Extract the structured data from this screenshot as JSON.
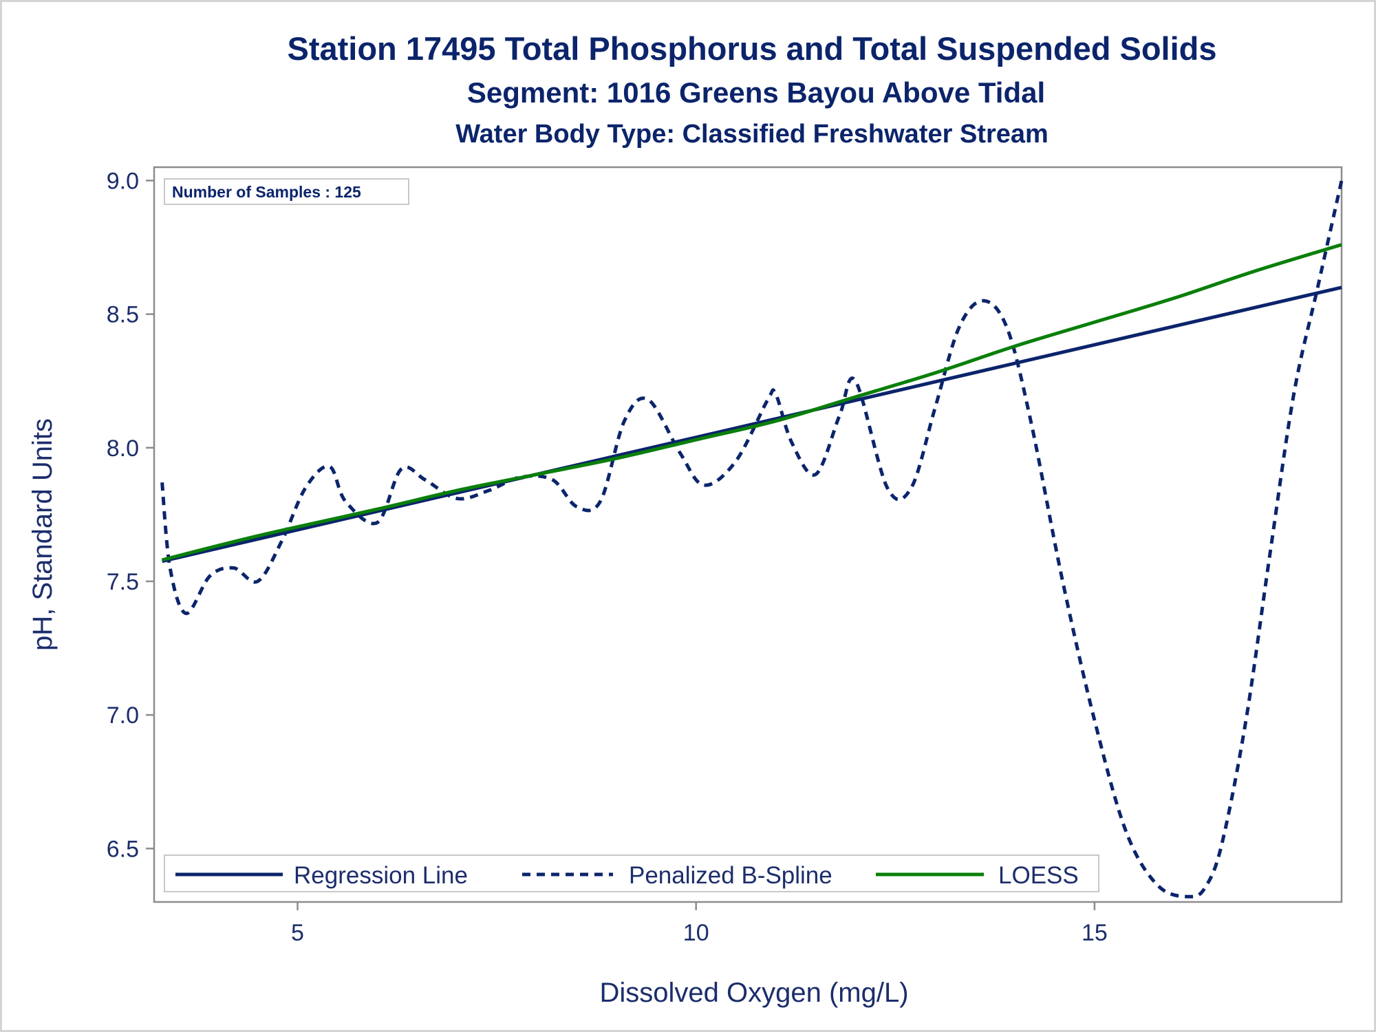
{
  "titles": {
    "line1": "Station 17495  Total Phosphorus and Total Suspended Solids",
    "line2": "Segment: 1016  Greens Bayou Above Tidal",
    "line3": "Water Body Type: Classified Freshwater Stream"
  },
  "inset": {
    "text": "Number of Samples : 125"
  },
  "colors": {
    "regression": "#0b246b",
    "spline": "#0b246b",
    "loess": "#0a7f0a",
    "axis": "#8c8c8c",
    "text": "#1c2d6b"
  },
  "chart_data": {
    "type": "line",
    "xlabel": "Dissolved Oxygen (mg/L)",
    "ylabel": "pH, Standard Units",
    "xlim": [
      3.2,
      18.1
    ],
    "ylim": [
      6.3,
      9.05
    ],
    "xticks": [
      5,
      10,
      15
    ],
    "xtick_labels": [
      "5",
      "10",
      "15"
    ],
    "yticks": [
      6.5,
      7.0,
      7.5,
      8.0,
      8.5,
      9.0
    ],
    "ytick_labels": [
      "6.5",
      "7.0",
      "7.5",
      "8.0",
      "8.5",
      "9.0"
    ],
    "grid": false,
    "legend_position": "bottom-left",
    "series": [
      {
        "name": "Regression Line",
        "style": "solid",
        "x": [
          3.3,
          18.1
        ],
        "y": [
          7.575,
          8.6
        ]
      },
      {
        "name": "Penalized B-Spline",
        "style": "dashed",
        "x": [
          3.3,
          3.4,
          3.6,
          3.9,
          4.2,
          4.5,
          4.8,
          5.1,
          5.4,
          5.6,
          6.0,
          6.3,
          6.6,
          7.0,
          7.4,
          7.8,
          8.2,
          8.5,
          8.8,
          9.1,
          9.4,
          9.8,
          10.1,
          10.5,
          10.9,
          11.0,
          11.2,
          11.5,
          11.8,
          12.0,
          12.4,
          12.7,
          13.0,
          13.3,
          13.6,
          13.9,
          14.2,
          14.6,
          15.0,
          15.4,
          15.8,
          16.2,
          16.4,
          16.6,
          16.9,
          17.2,
          17.5,
          17.8,
          18.1
        ],
        "y": [
          7.87,
          7.55,
          7.38,
          7.52,
          7.55,
          7.5,
          7.65,
          7.85,
          7.93,
          7.8,
          7.72,
          7.92,
          7.88,
          7.81,
          7.84,
          7.89,
          7.88,
          7.78,
          7.8,
          8.1,
          8.18,
          7.98,
          7.86,
          7.95,
          8.18,
          8.2,
          8.02,
          7.9,
          8.12,
          8.25,
          7.85,
          7.85,
          8.15,
          8.45,
          8.55,
          8.45,
          8.1,
          7.5,
          6.98,
          6.56,
          6.36,
          6.32,
          6.36,
          6.52,
          6.98,
          7.6,
          8.2,
          8.6,
          9.0
        ]
      },
      {
        "name": "LOESS",
        "style": "solid",
        "x": [
          3.3,
          4.5,
          6.0,
          7.0,
          8.0,
          9.0,
          10.0,
          11.0,
          12.0,
          13.0,
          14.0,
          15.0,
          16.0,
          17.0,
          18.1
        ],
        "y": [
          7.58,
          7.67,
          7.77,
          7.84,
          7.9,
          7.96,
          8.03,
          8.1,
          8.19,
          8.28,
          8.38,
          8.47,
          8.56,
          8.66,
          8.76
        ]
      }
    ]
  }
}
